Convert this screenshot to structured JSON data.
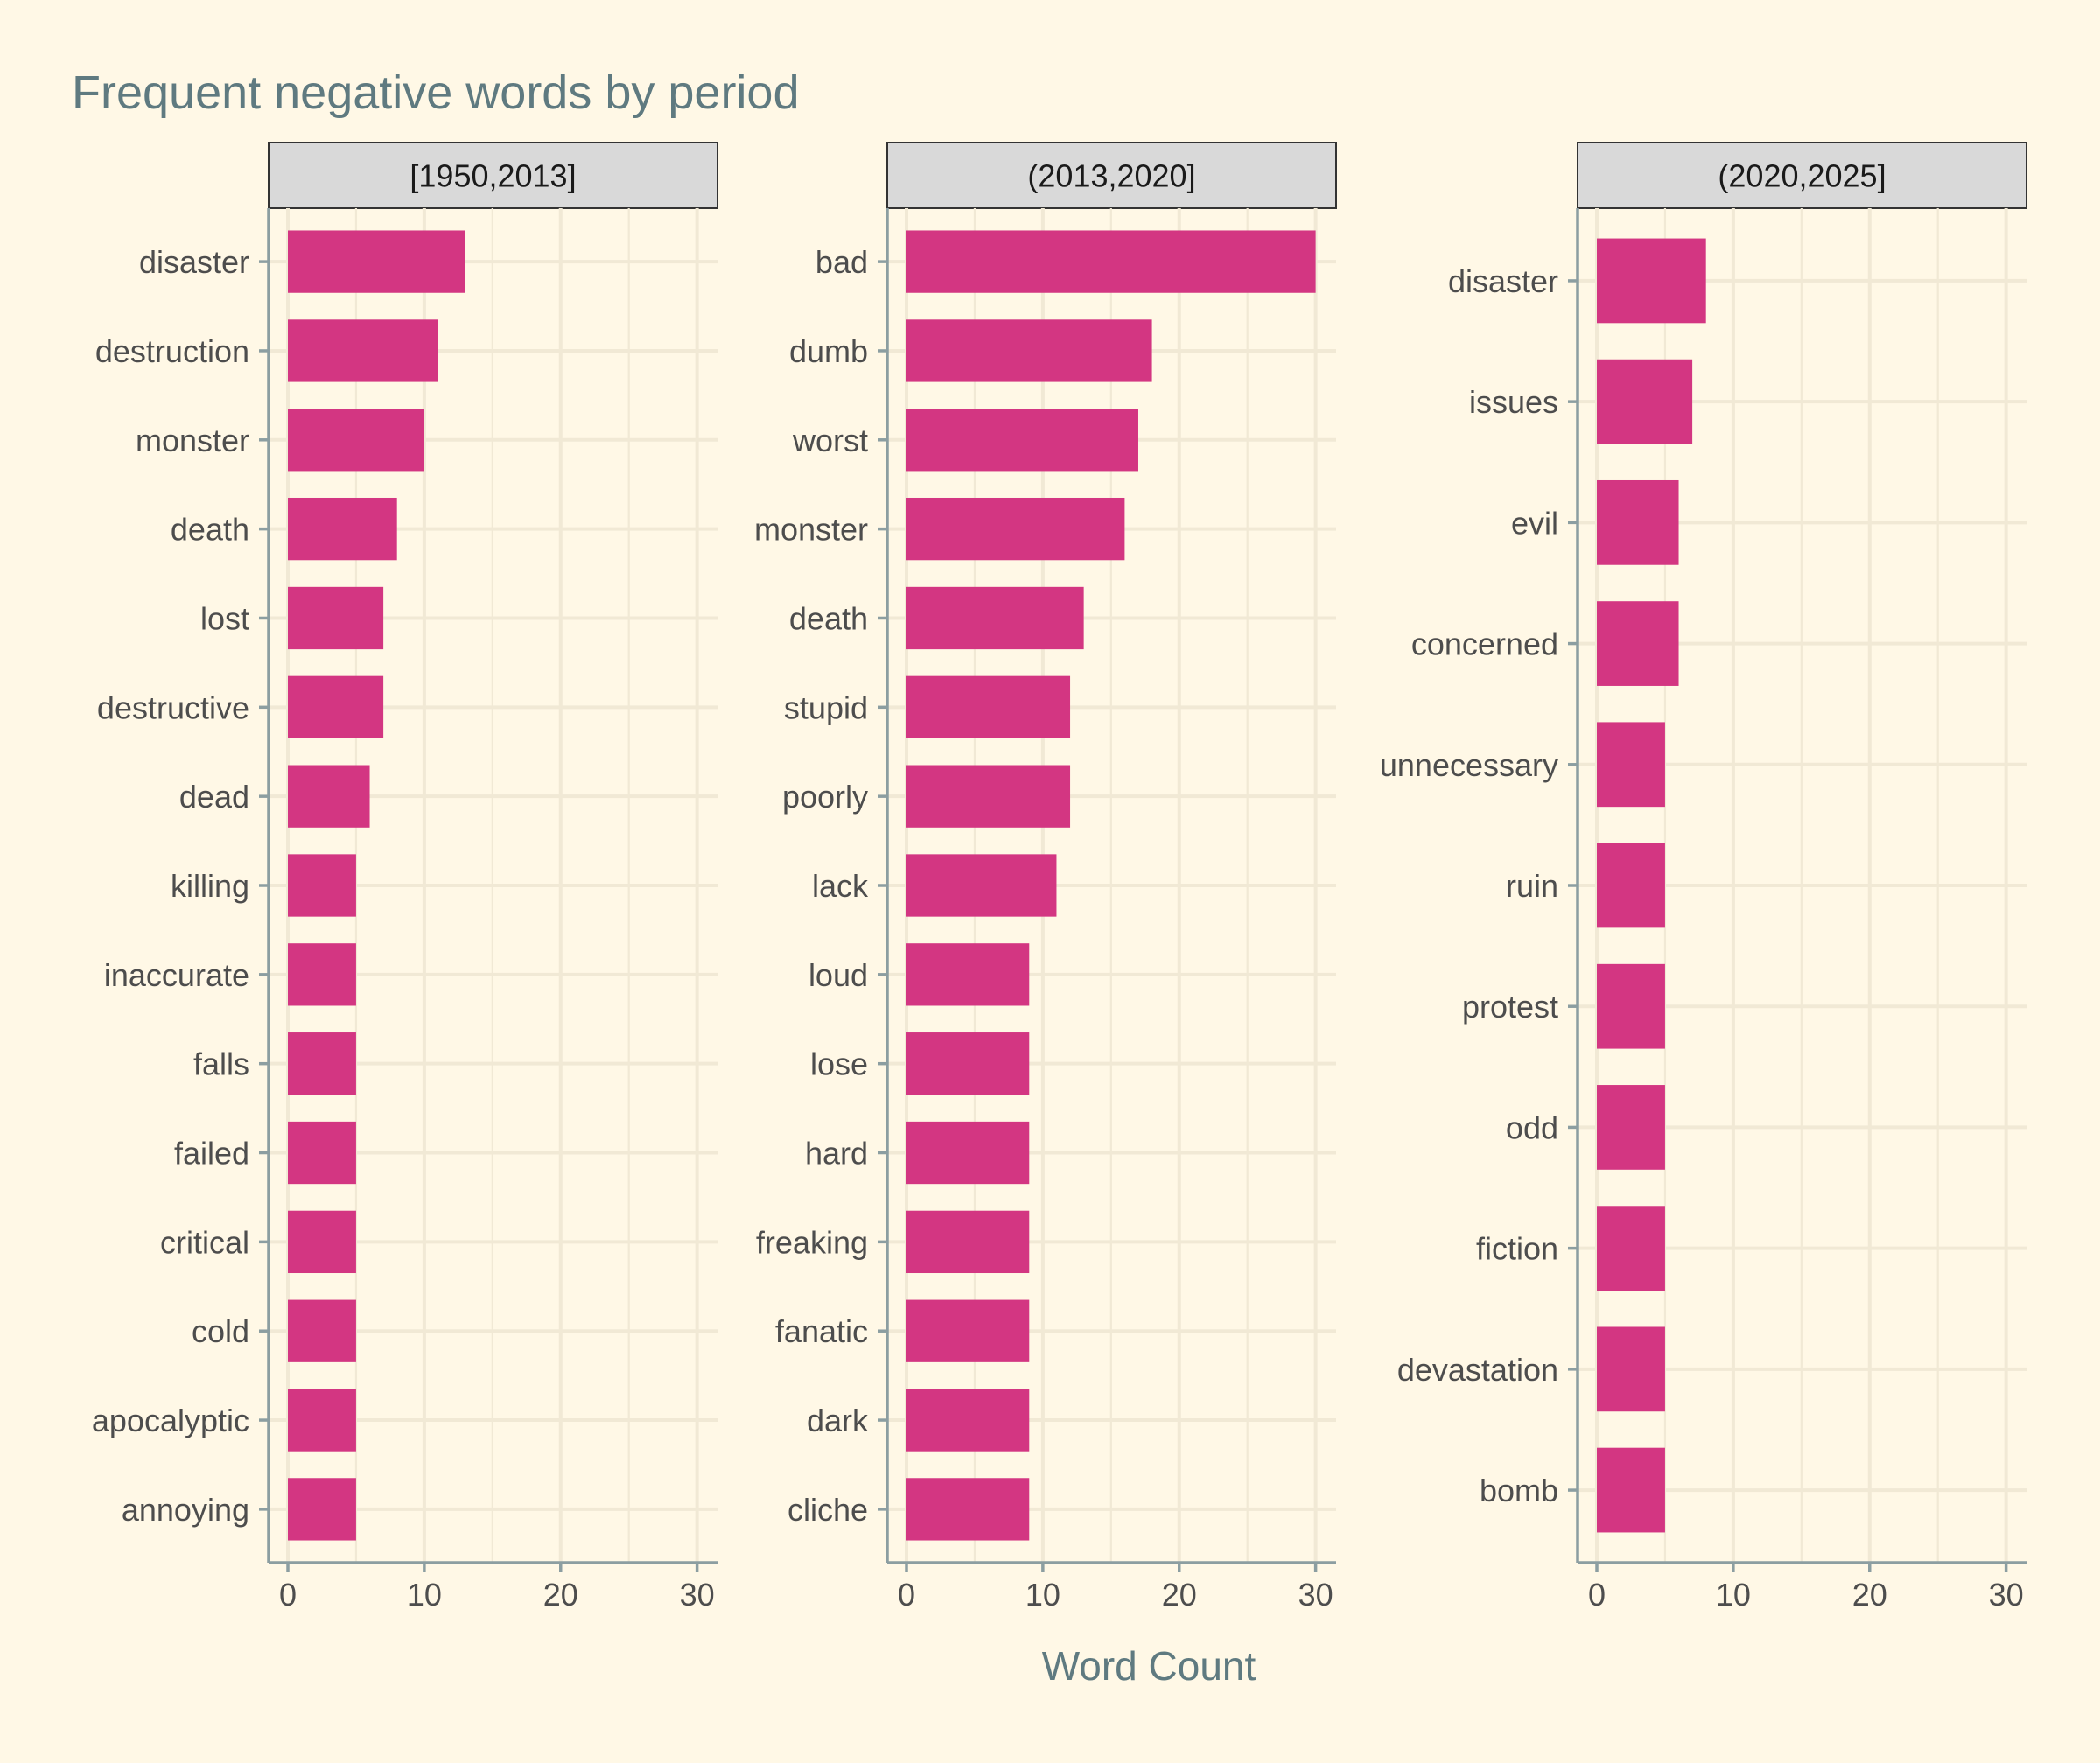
{
  "chart_data": {
    "type": "bar",
    "orientation": "horizontal",
    "title": "Frequent negative words by period",
    "xlabel": "Word Count",
    "ylabel": "",
    "xlim": [
      0,
      31.5
    ],
    "xticks": [
      0,
      10,
      20,
      30
    ],
    "grid": true,
    "bar_color": "#d33682",
    "panels": [
      {
        "label": "[1950,2013]",
        "categories": [
          "disaster",
          "destruction",
          "monster",
          "death",
          "lost",
          "destructive",
          "dead",
          "killing",
          "inaccurate",
          "falls",
          "failed",
          "critical",
          "cold",
          "apocalyptic",
          "annoying"
        ],
        "values": [
          13,
          11,
          10,
          8,
          7,
          7,
          6,
          5,
          5,
          5,
          5,
          5,
          5,
          5,
          5
        ]
      },
      {
        "label": "(2013,2020]",
        "categories": [
          "bad",
          "dumb",
          "worst",
          "monster",
          "death",
          "stupid",
          "poorly",
          "lack",
          "loud",
          "lose",
          "hard",
          "freaking",
          "fanatic",
          "dark",
          "cliche"
        ],
        "values": [
          30,
          18,
          17,
          16,
          13,
          12,
          12,
          11,
          9,
          9,
          9,
          9,
          9,
          9,
          9
        ]
      },
      {
        "label": "(2020,2025]",
        "categories": [
          "disaster",
          "issues",
          "evil",
          "concerned",
          "unnecessary",
          "ruin",
          "protest",
          "odd",
          "fiction",
          "devastation",
          "bomb"
        ],
        "values": [
          8,
          7,
          6,
          6,
          5,
          5,
          5,
          5,
          5,
          5,
          5
        ]
      }
    ]
  }
}
